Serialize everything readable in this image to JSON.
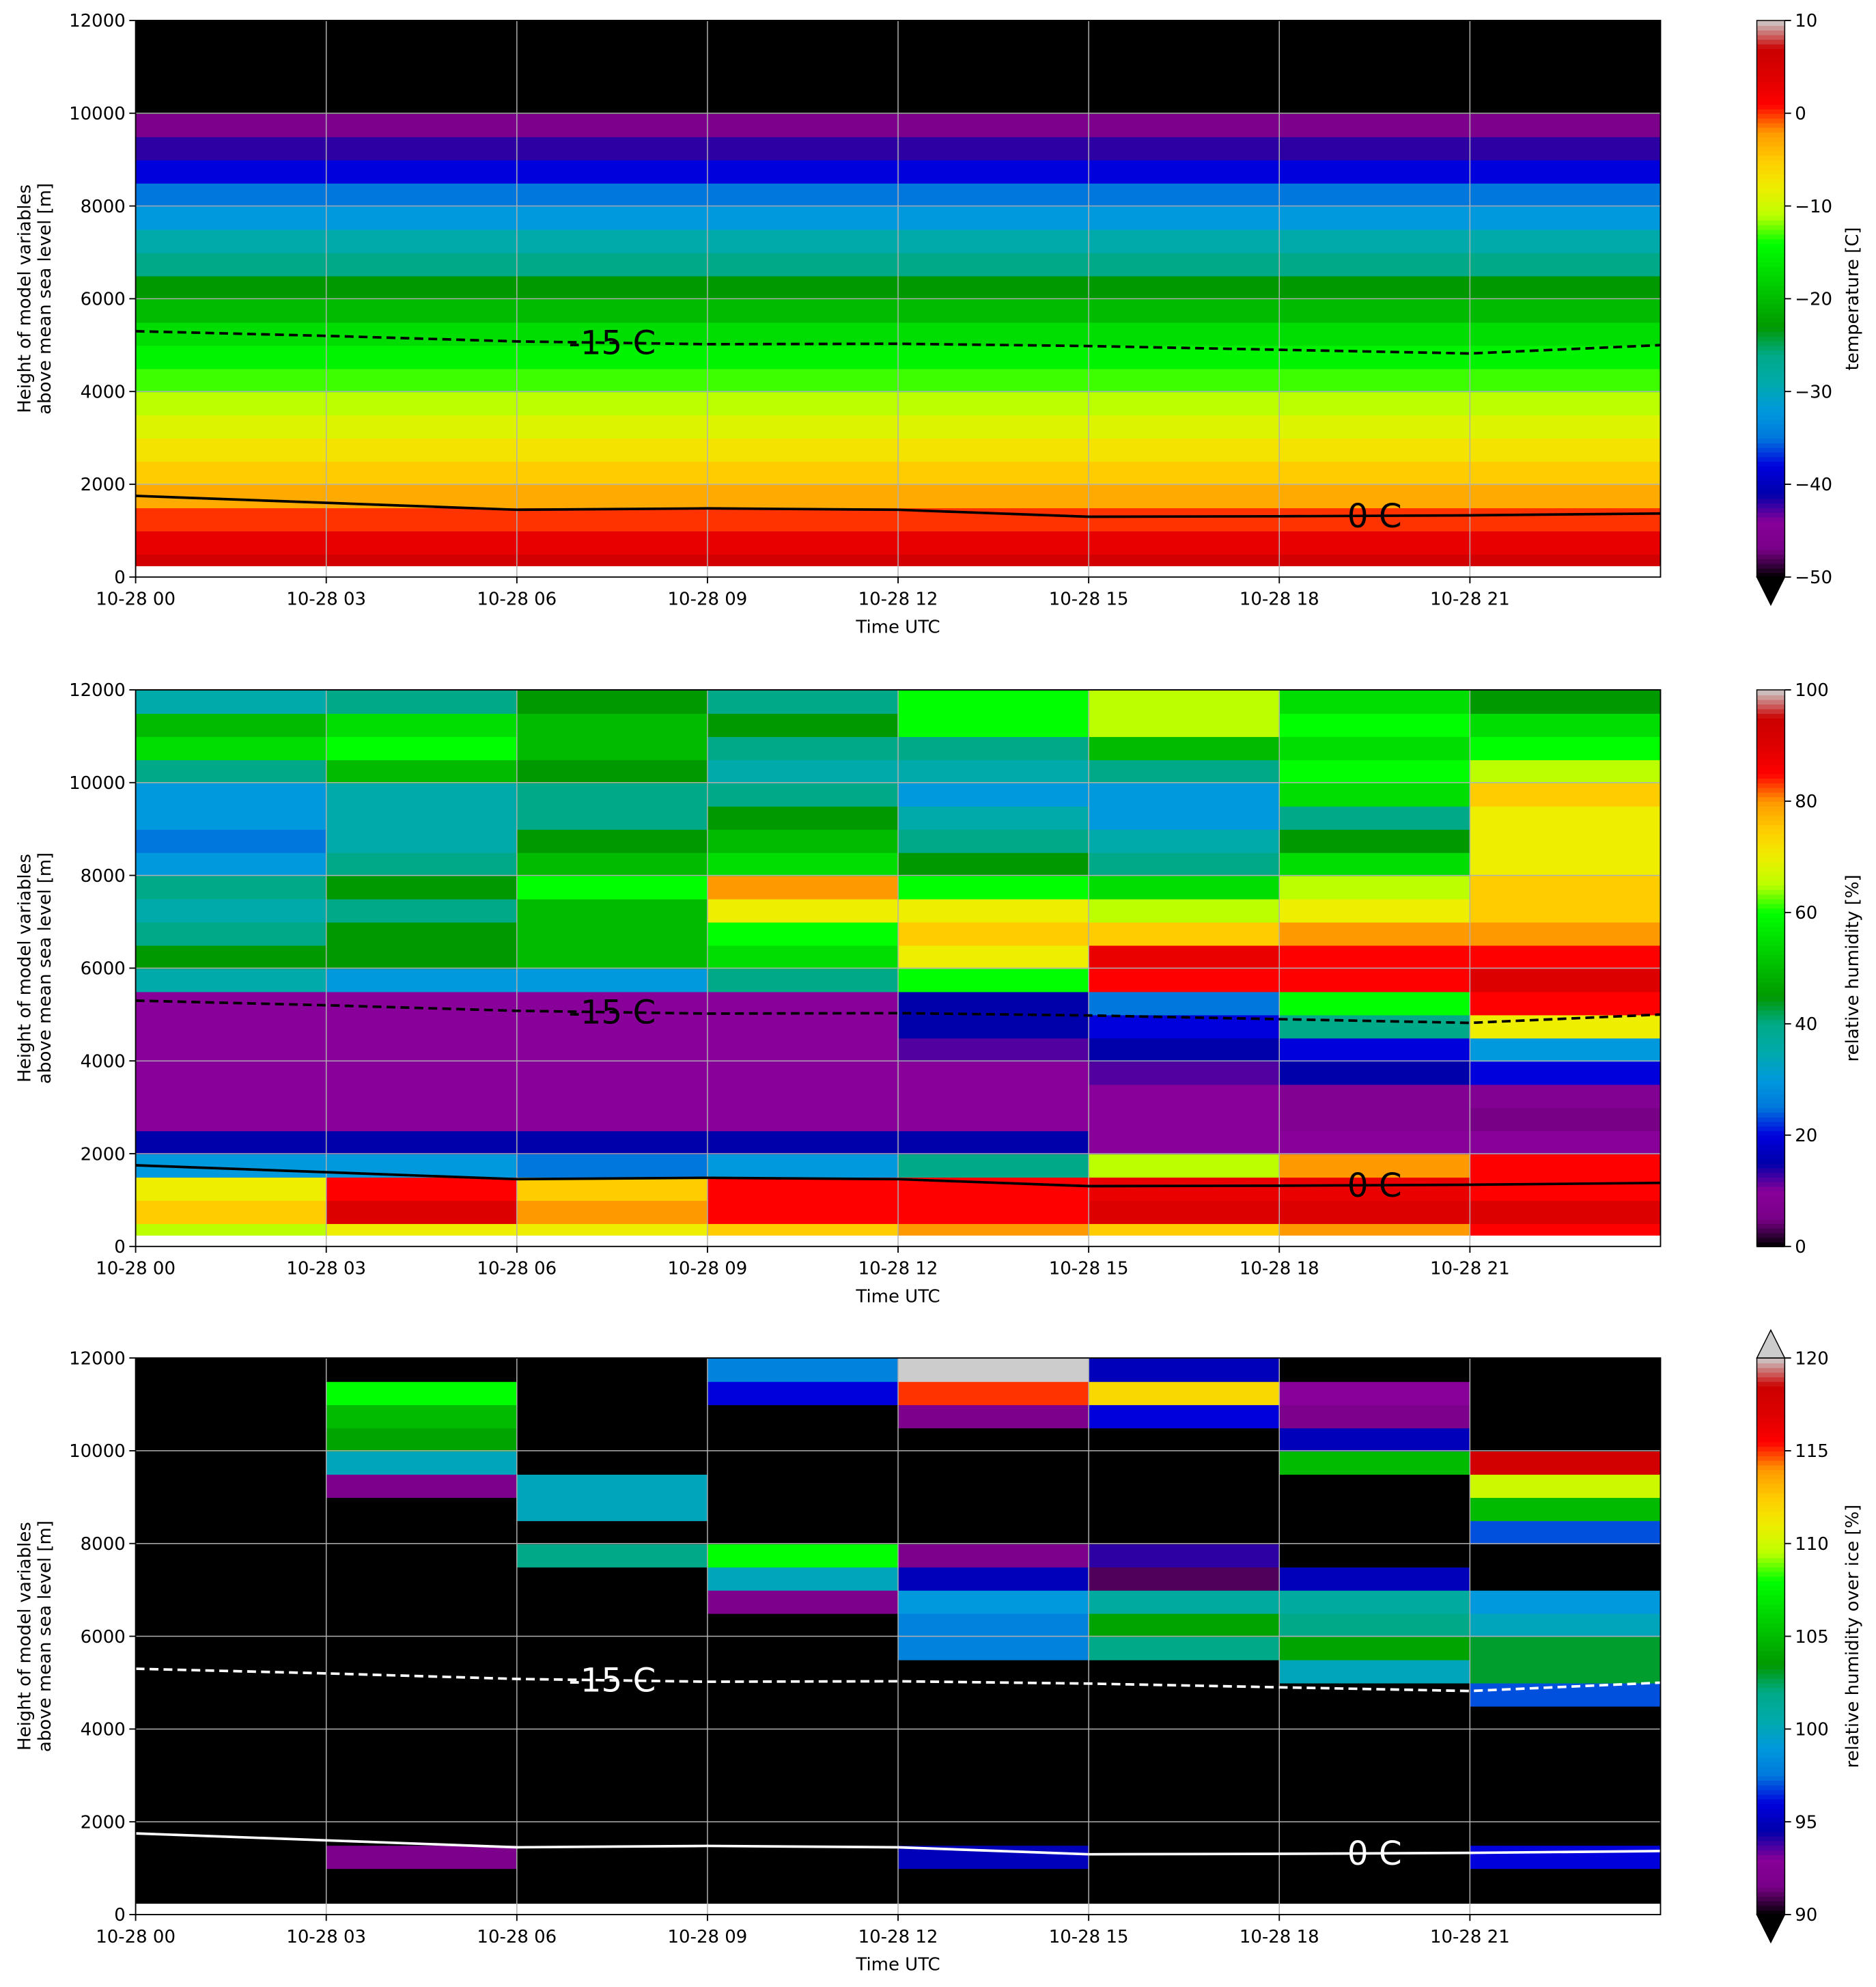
{
  "chart_data": [
    {
      "type": "heatmap",
      "xlabel": "Time UTC",
      "ylabel": [
        "Height of model variables",
        "above mean sea level [m]"
      ],
      "colorbar_label": "temperature [C]",
      "x": [
        "10-28 00",
        "10-28 03",
        "10-28 06",
        "10-28 09",
        "10-28 12",
        "10-28 15",
        "10-28 18",
        "10-28 21",
        "10-29 00"
      ],
      "ybins": [
        250,
        500,
        1000,
        1500,
        2000,
        2500,
        3000,
        3500,
        4000,
        4500,
        5000,
        5500,
        6000,
        6500,
        7000,
        7500,
        8000,
        8500,
        9000,
        9500,
        10000,
        10500,
        11000,
        11500,
        12000
      ],
      "z": [
        [
          6,
          6,
          6,
          6,
          6,
          6,
          6,
          6
        ],
        [
          3,
          3,
          3,
          3,
          3,
          3,
          3,
          3
        ],
        [
          0,
          0,
          0,
          0,
          0,
          0,
          0,
          0
        ],
        [
          -3,
          -3,
          -3,
          -3,
          -3,
          -3,
          -3,
          -3
        ],
        [
          -5,
          -5,
          -5,
          -5,
          -5,
          -5,
          -5,
          -5
        ],
        [
          -7,
          -7,
          -7,
          -7,
          -7,
          -7,
          -7,
          -7
        ],
        [
          -9,
          -9,
          -9,
          -9,
          -9,
          -9,
          -9,
          -9
        ],
        [
          -11,
          -11,
          -11,
          -11,
          -11,
          -11,
          -11,
          -11
        ],
        [
          -13,
          -13,
          -13,
          -13,
          -13,
          -13,
          -13,
          -13
        ],
        [
          -15,
          -15,
          -15,
          -15,
          -15,
          -15,
          -15,
          -15
        ],
        [
          -17,
          -17,
          -17,
          -17,
          -17,
          -17,
          -17,
          -17
        ],
        [
          -20,
          -20,
          -20,
          -20,
          -20,
          -20,
          -20,
          -20
        ],
        [
          -23,
          -23,
          -23,
          -23,
          -23,
          -23,
          -23,
          -23
        ],
        [
          -26,
          -26,
          -26,
          -26,
          -26,
          -26,
          -26,
          -26
        ],
        [
          -29,
          -29,
          -29,
          -29,
          -29,
          -29,
          -29,
          -29
        ],
        [
          -32,
          -32,
          -32,
          -32,
          -32,
          -32,
          -32,
          -32
        ],
        [
          -35,
          -35,
          -35,
          -35,
          -35,
          -35,
          -35,
          -35
        ],
        [
          -38,
          -38,
          -38,
          -38,
          -38,
          -38,
          -38,
          -38
        ],
        [
          -42,
          -42,
          -42,
          -42,
          -42,
          -42,
          -42,
          -42
        ],
        [
          -46,
          -46,
          -46,
          -46,
          -46,
          -46,
          -46,
          -46
        ],
        [
          -55,
          -55,
          -55,
          -55,
          -55,
          -55,
          -55,
          -55
        ],
        [
          -55,
          -55,
          -55,
          -55,
          -55,
          -55,
          -55,
          -55
        ],
        [
          -55,
          -55,
          -55,
          -55,
          -55,
          -55,
          -55,
          -55
        ],
        [
          -55,
          -55,
          -55,
          -55,
          -55,
          -55,
          -55,
          -55
        ]
      ],
      "xlim": [
        "10-28 00",
        "10-29 00"
      ],
      "ylim": [
        0,
        12000
      ],
      "xticks": [
        "10-28 00",
        "10-28 03",
        "10-28 06",
        "10-28 09",
        "10-28 12",
        "10-28 15",
        "10-28 18",
        "10-28 21"
      ],
      "yticks": [
        0,
        2000,
        4000,
        6000,
        8000,
        10000,
        12000
      ],
      "clim": [
        -50,
        10
      ],
      "extend": "min",
      "under_color": "#000000",
      "over_color": "#cccccc",
      "colorbar_ticks": [
        10,
        0,
        {
          "value": -10,
          "label": "−10"
        },
        {
          "value": -20,
          "label": "−20"
        },
        {
          "value": -30,
          "label": "−30"
        },
        {
          "value": -40,
          "label": "−40"
        },
        {
          "value": -50,
          "label": "−50"
        }
      ],
      "contour_color": "#000000",
      "grid": true
    },
    {
      "type": "heatmap",
      "xlabel": "Time UTC",
      "ylabel": [
        "Height of model variables",
        "above mean sea level [m]"
      ],
      "colorbar_label": "relative humidity [%]",
      "x": [
        "10-28 00",
        "10-28 03",
        "10-28 06",
        "10-28 09",
        "10-28 12",
        "10-28 15",
        "10-28 18",
        "10-28 21",
        "10-29 00"
      ],
      "ybins": [
        250,
        500,
        1000,
        1500,
        2000,
        2500,
        3000,
        3500,
        4000,
        4500,
        5000,
        5500,
        6000,
        6500,
        7000,
        7500,
        8000,
        8500,
        9000,
        9500,
        10000,
        10500,
        11000,
        11500,
        12000
      ],
      "z": [
        [
          65,
          70,
          70,
          75,
          80,
          75,
          80,
          85
        ],
        [
          75,
          90,
          80,
          85,
          85,
          90,
          90,
          90
        ],
        [
          70,
          85,
          75,
          85,
          85,
          88,
          88,
          85
        ],
        [
          30,
          30,
          25,
          30,
          40,
          65,
          80,
          85
        ],
        [
          15,
          15,
          15,
          15,
          15,
          10,
          10,
          10
        ],
        [
          10,
          10,
          10,
          10,
          10,
          10,
          8,
          5
        ],
        [
          10,
          10,
          10,
          10,
          10,
          10,
          8,
          8
        ],
        [
          10,
          10,
          10,
          10,
          10,
          12,
          15,
          20
        ],
        [
          10,
          10,
          10,
          10,
          12,
          15,
          20,
          30
        ],
        [
          10,
          10,
          10,
          10,
          15,
          20,
          40,
          70
        ],
        [
          10,
          10,
          10,
          10,
          15,
          25,
          60,
          85
        ],
        [
          35,
          30,
          30,
          40,
          60,
          85,
          85,
          90
        ],
        [
          45,
          45,
          50,
          55,
          70,
          88,
          85,
          85
        ],
        [
          40,
          45,
          50,
          60,
          75,
          75,
          80,
          80
        ],
        [
          35,
          40,
          50,
          70,
          70,
          65,
          70,
          75
        ],
        [
          40,
          45,
          60,
          80,
          60,
          55,
          65,
          75
        ],
        [
          30,
          40,
          50,
          55,
          45,
          40,
          55,
          70
        ],
        [
          25,
          35,
          45,
          50,
          40,
          35,
          45,
          70
        ],
        [
          30,
          35,
          40,
          45,
          35,
          30,
          40,
          70
        ],
        [
          30,
          35,
          40,
          40,
          30,
          30,
          55,
          75
        ],
        [
          40,
          50,
          45,
          35,
          35,
          40,
          60,
          65
        ],
        [
          55,
          60,
          50,
          40,
          40,
          50,
          55,
          60
        ],
        [
          50,
          55,
          50,
          45,
          60,
          65,
          60,
          55
        ],
        [
          35,
          40,
          45,
          40,
          60,
          65,
          55,
          45
        ]
      ],
      "xlim": [
        "10-28 00",
        "10-29 00"
      ],
      "ylim": [
        0,
        12000
      ],
      "xticks": [
        "10-28 00",
        "10-28 03",
        "10-28 06",
        "10-28 09",
        "10-28 12",
        "10-28 15",
        "10-28 18",
        "10-28 21"
      ],
      "yticks": [
        0,
        2000,
        4000,
        6000,
        8000,
        10000,
        12000
      ],
      "clim": [
        0,
        100
      ],
      "extend": "neither",
      "under_color": "#000000",
      "over_color": "#cccccc",
      "colorbar_ticks": [
        0,
        20,
        40,
        60,
        80,
        100
      ],
      "contour_color": "#000000",
      "grid": true
    },
    {
      "type": "heatmap",
      "xlabel": "Time UTC",
      "ylabel": [
        "Height of model variables",
        "above mean sea level [m]"
      ],
      "colorbar_label": "relative humidity over ice [%]",
      "x": [
        "10-28 00",
        "10-28 03",
        "10-28 06",
        "10-28 09",
        "10-28 12",
        "10-28 15",
        "10-28 18",
        "10-28 21",
        "10-29 00"
      ],
      "ybins": [
        250,
        500,
        1000,
        1500,
        2000,
        2500,
        3000,
        3500,
        4000,
        4500,
        5000,
        5500,
        6000,
        6500,
        7000,
        7500,
        8000,
        8500,
        9000,
        9500,
        10000,
        10500,
        11000,
        11500,
        12000
      ],
      "z": [
        [
          80,
          80,
          80,
          80,
          80,
          80,
          80,
          80
        ],
        [
          80,
          80,
          80,
          80,
          80,
          80,
          80,
          80
        ],
        [
          80,
          92,
          80,
          80,
          95,
          80,
          80,
          96
        ],
        [
          80,
          80,
          80,
          80,
          80,
          80,
          80,
          80
        ],
        [
          80,
          80,
          80,
          80,
          80,
          80,
          80,
          80
        ],
        [
          80,
          80,
          80,
          80,
          80,
          80,
          80,
          80
        ],
        [
          80,
          80,
          80,
          80,
          80,
          80,
          80,
          80
        ],
        [
          80,
          80,
          80,
          80,
          80,
          80,
          80,
          80
        ],
        [
          80,
          80,
          80,
          80,
          80,
          80,
          80,
          80
        ],
        [
          80,
          80,
          80,
          80,
          80,
          80,
          80,
          97
        ],
        [
          80,
          80,
          80,
          80,
          80,
          80,
          100,
          103
        ],
        [
          80,
          80,
          80,
          80,
          98,
          102,
          104,
          103
        ],
        [
          80,
          80,
          80,
          80,
          98,
          104,
          102,
          100
        ],
        [
          80,
          80,
          80,
          92,
          99,
          101,
          101,
          99
        ],
        [
          80,
          80,
          80,
          100,
          95,
          91,
          95,
          80
        ],
        [
          80,
          80,
          102,
          108,
          92,
          94,
          80,
          80
        ],
        [
          80,
          80,
          80,
          80,
          80,
          80,
          80,
          97
        ],
        [
          80,
          80,
          100,
          80,
          80,
          80,
          80,
          105
        ],
        [
          80,
          92,
          100,
          80,
          80,
          80,
          80,
          110
        ],
        [
          80,
          100,
          80,
          80,
          80,
          80,
          105,
          118
        ],
        [
          80,
          104,
          80,
          80,
          80,
          80,
          95,
          80
        ],
        [
          80,
          105,
          80,
          80,
          92,
          96,
          92,
          80
        ],
        [
          80,
          108,
          80,
          96,
          115,
          112,
          93,
          80
        ],
        [
          80,
          80,
          80,
          98,
          121,
          95,
          80,
          80
        ]
      ],
      "xlim": [
        "10-28 00",
        "10-29 00"
      ],
      "ylim": [
        0,
        12000
      ],
      "xticks": [
        "10-28 00",
        "10-28 03",
        "10-28 06",
        "10-28 09",
        "10-28 12",
        "10-28 15",
        "10-28 18",
        "10-28 21"
      ],
      "yticks": [
        0,
        2000,
        4000,
        6000,
        8000,
        10000,
        12000
      ],
      "clim": [
        90,
        120
      ],
      "extend": "both",
      "under_color": "#000000",
      "over_color": "#cccccc",
      "colorbar_ticks": [
        90,
        95,
        100,
        105,
        110,
        115,
        120
      ],
      "contour_color": "#ffffff",
      "grid": true
    }
  ],
  "contours": [
    {
      "label": "-15 C",
      "style": "dashed",
      "x": [
        "10-28 00",
        "10-28 03",
        "10-28 06",
        "10-28 09",
        "10-28 12",
        "10-28 15",
        "10-28 18",
        "10-28 21",
        "10-29 00"
      ],
      "y": [
        5300,
        5200,
        5080,
        5020,
        5030,
        4980,
        4900,
        4820,
        5000
      ]
    },
    {
      "label": "0 C",
      "style": "solid",
      "x": [
        "10-28 00",
        "10-28 03",
        "10-28 06",
        "10-28 09",
        "10-28 12",
        "10-28 15",
        "10-28 18",
        "10-28 21",
        "10-29 00"
      ],
      "y": [
        1750,
        1600,
        1450,
        1480,
        1450,
        1300,
        1310,
        1330,
        1370
      ]
    }
  ],
  "colormap": [
    "#000000",
    "#780087",
    "#880099",
    "#0000aa",
    "#0000dd",
    "#0077dd",
    "#0099dd",
    "#00aaaa",
    "#00aa88",
    "#009900",
    "#00bb00",
    "#00dd00",
    "#00ff00",
    "#bbff00",
    "#eeee00",
    "#ffcc00",
    "#ff9900",
    "#ff0000",
    "#dd0000",
    "#cc0000",
    "#cccccc"
  ]
}
